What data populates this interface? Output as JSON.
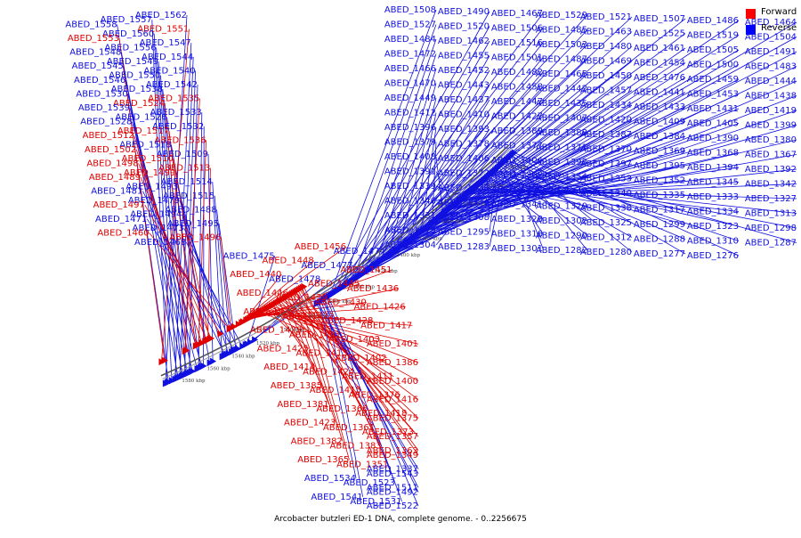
{
  "colors": {
    "forward": "#e00000",
    "reverse": "#1010e0",
    "backbone": "#666666",
    "tickmark": "#333333"
  },
  "legend": [
    {
      "key": "forward",
      "label": "Forward",
      "color": "#ff0000"
    },
    {
      "key": "reverse",
      "label": "Reverse",
      "color": "#0000ff"
    }
  ],
  "caption": {
    "title": "Arcobacter butzleri ED-1 DNA, complete genome.",
    "range": "- 0..2256675"
  },
  "ticks": [
    "1580 kbp",
    "1560 kbp",
    "1540 kbp",
    "1520 kbp",
    "1500 kbp",
    "1480 kbp",
    "1460 kbp",
    "1440 kbp",
    "1420 kbp",
    "1400 kbp",
    "1380 kbp",
    "1360 kbp",
    "1340 kbp",
    "1320 kbp",
    "1300 kbp"
  ],
  "genes": [
    {
      "id": "ABED_1562",
      "strand": "reverse"
    },
    {
      "id": "ABED_1557",
      "strand": "reverse"
    },
    {
      "id": "ABED_1558",
      "strand": "reverse"
    },
    {
      "id": "ABED_1551",
      "strand": "forward"
    },
    {
      "id": "ABED_1560",
      "strand": "reverse"
    },
    {
      "id": "ABED_1553",
      "strand": "forward"
    },
    {
      "id": "ABED_1547",
      "strand": "reverse"
    },
    {
      "id": "ABED_1556",
      "strand": "reverse"
    },
    {
      "id": "ABED_1548",
      "strand": "reverse"
    },
    {
      "id": "ABED_1544",
      "strand": "reverse"
    },
    {
      "id": "ABED_1549",
      "strand": "reverse"
    },
    {
      "id": "ABED_1545",
      "strand": "reverse"
    },
    {
      "id": "ABED_1540",
      "strand": "reverse"
    },
    {
      "id": "ABED_1550",
      "strand": "reverse"
    },
    {
      "id": "ABED_1546",
      "strand": "reverse"
    },
    {
      "id": "ABED_1542",
      "strand": "reverse"
    },
    {
      "id": "ABED_1538",
      "strand": "reverse"
    },
    {
      "id": "ABED_1530",
      "strand": "reverse"
    },
    {
      "id": "ABED_1535",
      "strand": "forward"
    },
    {
      "id": "ABED_1524",
      "strand": "forward"
    },
    {
      "id": "ABED_1539",
      "strand": "reverse"
    },
    {
      "id": "ABED_1533",
      "strand": "reverse"
    },
    {
      "id": "ABED_1526",
      "strand": "reverse"
    },
    {
      "id": "ABED_1528",
      "strand": "reverse"
    },
    {
      "id": "ABED_1532",
      "strand": "reverse"
    },
    {
      "id": "ABED_1517",
      "strand": "forward"
    },
    {
      "id": "ABED_1512",
      "strand": "forward"
    },
    {
      "id": "ABED_1536",
      "strand": "forward"
    },
    {
      "id": "ABED_1518",
      "strand": "reverse"
    },
    {
      "id": "ABED_1502",
      "strand": "forward"
    },
    {
      "id": "ABED_1509",
      "strand": "reverse"
    },
    {
      "id": "ABED_1510",
      "strand": "forward"
    },
    {
      "id": "ABED_1498",
      "strand": "forward"
    },
    {
      "id": "ABED_1513",
      "strand": "forward"
    },
    {
      "id": "ABED_1499",
      "strand": "forward"
    },
    {
      "id": "ABED_1489",
      "strand": "forward"
    },
    {
      "id": "ABED_1514",
      "strand": "reverse"
    },
    {
      "id": "ABED_1493",
      "strand": "reverse"
    },
    {
      "id": "ABED_1481",
      "strand": "reverse"
    },
    {
      "id": "ABED_1515",
      "strand": "reverse"
    },
    {
      "id": "ABED_1479",
      "strand": "reverse"
    },
    {
      "id": "ABED_1497",
      "strand": "forward"
    },
    {
      "id": "ABED_1488",
      "strand": "reverse"
    },
    {
      "id": "ABED_1494",
      "strand": "reverse"
    },
    {
      "id": "ABED_1471",
      "strand": "reverse"
    },
    {
      "id": "ABED_1495",
      "strand": "reverse"
    },
    {
      "id": "ABED_1473",
      "strand": "reverse"
    },
    {
      "id": "ABED_1460",
      "strand": "forward"
    },
    {
      "id": "ABED_1496",
      "strand": "forward"
    },
    {
      "id": "ABED_1468",
      "strand": "reverse"
    },
    {
      "id": "ABED_1456",
      "strand": "forward"
    },
    {
      "id": "ABED_1474",
      "strand": "reverse"
    },
    {
      "id": "ABED_1475",
      "strand": "reverse"
    },
    {
      "id": "ABED_1448",
      "strand": "forward"
    },
    {
      "id": "ABED_1477",
      "strand": "reverse"
    },
    {
      "id": "ABED_1451",
      "strand": "forward"
    },
    {
      "id": "ABED_1440",
      "strand": "forward"
    },
    {
      "id": "ABED_1478",
      "strand": "reverse"
    },
    {
      "id": "ABED_1445",
      "strand": "forward"
    },
    {
      "id": "ABED_1436",
      "strand": "forward"
    },
    {
      "id": "ABED_1446",
      "strand": "forward"
    },
    {
      "id": "ABED_1439",
      "strand": "forward"
    },
    {
      "id": "ABED_1430",
      "strand": "forward"
    },
    {
      "id": "ABED_1426",
      "strand": "forward"
    },
    {
      "id": "ABED_1432",
      "strand": "forward"
    },
    {
      "id": "ABED_1422",
      "strand": "forward"
    },
    {
      "id": "ABED_1428",
      "strand": "forward"
    },
    {
      "id": "ABED_1417",
      "strand": "forward"
    },
    {
      "id": "ABED_1429",
      "strand": "forward"
    },
    {
      "id": "ABED_1421",
      "strand": "forward"
    },
    {
      "id": "ABED_1403",
      "strand": "forward"
    },
    {
      "id": "ABED_1401",
      "strand": "forward"
    },
    {
      "id": "ABED_1425",
      "strand": "forward"
    },
    {
      "id": "ABED_1413",
      "strand": "forward"
    },
    {
      "id": "ABED_1402",
      "strand": "forward"
    },
    {
      "id": "ABED_1386",
      "strand": "forward"
    },
    {
      "id": "ABED_1414",
      "strand": "forward"
    },
    {
      "id": "ABED_1424",
      "strand": "forward"
    },
    {
      "id": "ABED_1411",
      "strand": "forward"
    },
    {
      "id": "ABED_1400",
      "strand": "forward"
    },
    {
      "id": "ABED_1385",
      "strand": "forward"
    },
    {
      "id": "ABED_1415",
      "strand": "forward"
    },
    {
      "id": "ABED_1376",
      "strand": "forward"
    },
    {
      "id": "ABED_1416",
      "strand": "forward"
    },
    {
      "id": "ABED_1381",
      "strand": "forward"
    },
    {
      "id": "ABED_1366",
      "strand": "forward"
    },
    {
      "id": "ABED_1418",
      "strand": "forward"
    },
    {
      "id": "ABED_1375",
      "strand": "forward"
    },
    {
      "id": "ABED_1423",
      "strand": "forward"
    },
    {
      "id": "ABED_1361",
      "strand": "forward"
    },
    {
      "id": "ABED_1373",
      "strand": "forward"
    },
    {
      "id": "ABED_1357",
      "strand": "forward"
    },
    {
      "id": "ABED_1382",
      "strand": "forward"
    },
    {
      "id": "ABED_1383",
      "strand": "forward"
    },
    {
      "id": "ABED_1363",
      "strand": "forward"
    },
    {
      "id": "ABED_1349",
      "strand": "forward"
    },
    {
      "id": "ABED_1365",
      "strand": "forward"
    },
    {
      "id": "ABED_1351",
      "strand": "forward"
    },
    {
      "id": "ABED_1337",
      "strand": "reverse"
    },
    {
      "id": "ABED_1543",
      "strand": "reverse"
    },
    {
      "id": "ABED_1534",
      "strand": "reverse"
    },
    {
      "id": "ABED_1523",
      "strand": "reverse"
    },
    {
      "id": "ABED_1511",
      "strand": "reverse"
    },
    {
      "id": "ABED_1492",
      "strand": "reverse"
    },
    {
      "id": "ABED_1541",
      "strand": "reverse"
    },
    {
      "id": "ABED_1531",
      "strand": "reverse"
    },
    {
      "id": "ABED_1522",
      "strand": "reverse"
    },
    {
      "id": "ABED_1508",
      "strand": "reverse"
    },
    {
      "id": "ABED_1490",
      "strand": "reverse"
    },
    {
      "id": "ABED_1467",
      "strand": "reverse"
    },
    {
      "id": "ABED_1529",
      "strand": "reverse"
    },
    {
      "id": "ABED_1521",
      "strand": "reverse"
    },
    {
      "id": "ABED_1507",
      "strand": "reverse"
    },
    {
      "id": "ABED_1486",
      "strand": "reverse"
    },
    {
      "id": "ABED_1464",
      "strand": "reverse"
    },
    {
      "id": "ABED_1527",
      "strand": "reverse"
    },
    {
      "id": "ABED_1520",
      "strand": "reverse"
    },
    {
      "id": "ABED_1506",
      "strand": "reverse"
    },
    {
      "id": "ABED_1485",
      "strand": "reverse"
    },
    {
      "id": "ABED_1463",
      "strand": "reverse"
    },
    {
      "id": "ABED_1525",
      "strand": "reverse"
    },
    {
      "id": "ABED_1519",
      "strand": "reverse"
    },
    {
      "id": "ABED_1504",
      "strand": "reverse"
    },
    {
      "id": "ABED_1484",
      "strand": "reverse"
    },
    {
      "id": "ABED_1462",
      "strand": "reverse"
    },
    {
      "id": "ABED_1516",
      "strand": "reverse"
    },
    {
      "id": "ABED_1503",
      "strand": "reverse"
    },
    {
      "id": "ABED_1480",
      "strand": "reverse"
    },
    {
      "id": "ABED_1461",
      "strand": "reverse"
    },
    {
      "id": "ABED_1505",
      "strand": "reverse"
    },
    {
      "id": "ABED_1491",
      "strand": "reverse"
    },
    {
      "id": "ABED_1472",
      "strand": "reverse"
    },
    {
      "id": "ABED_1455",
      "strand": "reverse"
    },
    {
      "id": "ABED_1501",
      "strand": "reverse"
    },
    {
      "id": "ABED_1487",
      "strand": "reverse"
    },
    {
      "id": "ABED_1469",
      "strand": "reverse"
    },
    {
      "id": "ABED_1454",
      "strand": "reverse"
    },
    {
      "id": "ABED_1500",
      "strand": "reverse"
    },
    {
      "id": "ABED_1483",
      "strand": "reverse"
    },
    {
      "id": "ABED_1466",
      "strand": "reverse"
    },
    {
      "id": "ABED_1452",
      "strand": "reverse"
    },
    {
      "id": "ABED_1482",
      "strand": "reverse"
    },
    {
      "id": "ABED_1465",
      "strand": "reverse"
    },
    {
      "id": "ABED_1450",
      "strand": "reverse"
    },
    {
      "id": "ABED_1476",
      "strand": "reverse"
    },
    {
      "id": "ABED_1459",
      "strand": "reverse"
    },
    {
      "id": "ABED_1444",
      "strand": "reverse"
    },
    {
      "id": "ABED_1470",
      "strand": "reverse"
    },
    {
      "id": "ABED_1443",
      "strand": "reverse"
    },
    {
      "id": "ABED_1458",
      "strand": "reverse"
    },
    {
      "id": "ABED_1442",
      "strand": "reverse"
    },
    {
      "id": "ABED_1457",
      "strand": "reverse"
    },
    {
      "id": "ABED_1441",
      "strand": "reverse"
    },
    {
      "id": "ABED_1453",
      "strand": "reverse"
    },
    {
      "id": "ABED_1438",
      "strand": "reverse"
    },
    {
      "id": "ABED_1449",
      "strand": "reverse"
    },
    {
      "id": "ABED_1437",
      "strand": "reverse"
    },
    {
      "id": "ABED_1447",
      "strand": "reverse"
    },
    {
      "id": "ABED_1435",
      "strand": "reverse"
    },
    {
      "id": "ABED_1434",
      "strand": "reverse"
    },
    {
      "id": "ABED_1433",
      "strand": "reverse"
    },
    {
      "id": "ABED_1431",
      "strand": "reverse"
    },
    {
      "id": "ABED_1419",
      "strand": "reverse"
    },
    {
      "id": "ABED_1412",
      "strand": "reverse"
    },
    {
      "id": "ABED_1410",
      "strand": "reverse"
    },
    {
      "id": "ABED_1427",
      "strand": "reverse"
    },
    {
      "id": "ABED_1407",
      "strand": "reverse"
    },
    {
      "id": "ABED_1420",
      "strand": "reverse"
    },
    {
      "id": "ABED_1409",
      "strand": "reverse"
    },
    {
      "id": "ABED_1405",
      "strand": "reverse"
    },
    {
      "id": "ABED_1399",
      "strand": "reverse"
    },
    {
      "id": "ABED_1396",
      "strand": "reverse"
    },
    {
      "id": "ABED_1393",
      "strand": "reverse"
    },
    {
      "id": "ABED_1389",
      "strand": "reverse"
    },
    {
      "id": "ABED_1388",
      "strand": "reverse"
    },
    {
      "id": "ABED_1387",
      "strand": "reverse"
    },
    {
      "id": "ABED_1384",
      "strand": "reverse"
    },
    {
      "id": "ABED_1390",
      "strand": "reverse"
    },
    {
      "id": "ABED_1380",
      "strand": "reverse"
    },
    {
      "id": "ABED_1379",
      "strand": "reverse"
    },
    {
      "id": "ABED_1378",
      "strand": "reverse"
    },
    {
      "id": "ABED_1377",
      "strand": "reverse"
    },
    {
      "id": "ABED_1371",
      "strand": "reverse"
    },
    {
      "id": "ABED_1370",
      "strand": "reverse"
    },
    {
      "id": "ABED_1369",
      "strand": "reverse"
    },
    {
      "id": "ABED_1368",
      "strand": "reverse"
    },
    {
      "id": "ABED_1367",
      "strand": "reverse"
    },
    {
      "id": "ABED_1408",
      "strand": "reverse"
    },
    {
      "id": "ABED_1406",
      "strand": "reverse"
    },
    {
      "id": "ABED_1404",
      "strand": "reverse"
    },
    {
      "id": "ABED_1398",
      "strand": "reverse"
    },
    {
      "id": "ABED_1397",
      "strand": "reverse"
    },
    {
      "id": "ABED_1395",
      "strand": "reverse"
    },
    {
      "id": "ABED_1394",
      "strand": "reverse"
    },
    {
      "id": "ABED_1392",
      "strand": "reverse"
    },
    {
      "id": "ABED_1391",
      "strand": "reverse"
    },
    {
      "id": "ABED_1372",
      "strand": "reverse"
    },
    {
      "id": "ABED_1362",
      "strand": "reverse"
    },
    {
      "id": "ABED_1354",
      "strand": "reverse"
    },
    {
      "id": "ABED_1353",
      "strand": "reverse"
    },
    {
      "id": "ABED_1352",
      "strand": "reverse"
    },
    {
      "id": "ABED_1345",
      "strand": "reverse"
    },
    {
      "id": "ABED_1342",
      "strand": "reverse"
    },
    {
      "id": "ABED_1339",
      "strand": "reverse"
    },
    {
      "id": "ABED_1336",
      "strand": "reverse"
    },
    {
      "id": "ABED_1332",
      "strand": "reverse"
    },
    {
      "id": "ABED_1343",
      "strand": "reverse"
    },
    {
      "id": "ABED_1340",
      "strand": "reverse"
    },
    {
      "id": "ABED_1335",
      "strand": "reverse"
    },
    {
      "id": "ABED_1333",
      "strand": "reverse"
    },
    {
      "id": "ABED_1327",
      "strand": "reverse"
    },
    {
      "id": "ABED_1346",
      "strand": "reverse"
    },
    {
      "id": "ABED_1326",
      "strand": "reverse"
    },
    {
      "id": "ABED_1341",
      "strand": "reverse"
    },
    {
      "id": "ABED_1320",
      "strand": "reverse"
    },
    {
      "id": "ABED_1338",
      "strand": "reverse"
    },
    {
      "id": "ABED_1317",
      "strand": "reverse"
    },
    {
      "id": "ABED_1334",
      "strand": "reverse"
    },
    {
      "id": "ABED_1313",
      "strand": "reverse"
    },
    {
      "id": "ABED_1331",
      "strand": "reverse"
    },
    {
      "id": "ABED_1308",
      "strand": "reverse"
    },
    {
      "id": "ABED_1328",
      "strand": "reverse"
    },
    {
      "id": "ABED_1302",
      "strand": "reverse"
    },
    {
      "id": "ABED_1325",
      "strand": "reverse"
    },
    {
      "id": "ABED_1299",
      "strand": "reverse"
    },
    {
      "id": "ABED_1323",
      "strand": "reverse"
    },
    {
      "id": "ABED_1298",
      "strand": "reverse"
    },
    {
      "id": "ABED_1319",
      "strand": "reverse"
    },
    {
      "id": "ABED_1295",
      "strand": "reverse"
    },
    {
      "id": "ABED_1316",
      "strand": "reverse"
    },
    {
      "id": "ABED_1290",
      "strand": "reverse"
    },
    {
      "id": "ABED_1312",
      "strand": "reverse"
    },
    {
      "id": "ABED_1288",
      "strand": "reverse"
    },
    {
      "id": "ABED_1310",
      "strand": "reverse"
    },
    {
      "id": "ABED_1287",
      "strand": "reverse"
    },
    {
      "id": "ABED_1304",
      "strand": "reverse"
    },
    {
      "id": "ABED_1283",
      "strand": "reverse"
    },
    {
      "id": "ABED_1301",
      "strand": "reverse"
    },
    {
      "id": "ABED_1282",
      "strand": "reverse"
    },
    {
      "id": "ABED_1280",
      "strand": "reverse"
    },
    {
      "id": "ABED_1277",
      "strand": "reverse"
    },
    {
      "id": "ABED_1276",
      "strand": "reverse"
    }
  ]
}
